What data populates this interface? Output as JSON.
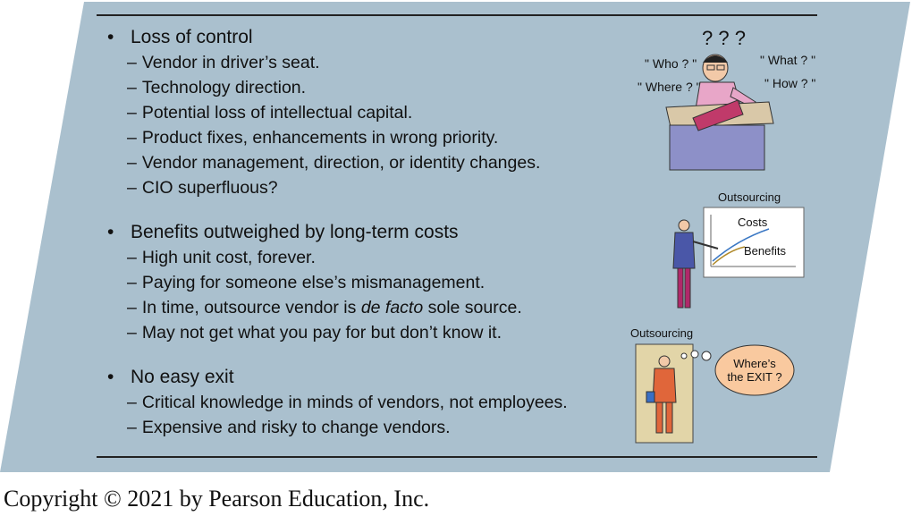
{
  "sections": [
    {
      "heading": "Loss of control",
      "items": [
        [
          "Vendor in driver’s seat."
        ],
        [
          "Technology direction."
        ],
        [
          "Potential loss of intellectual capital."
        ],
        [
          "Product fixes, enhancements in wrong priority."
        ],
        [
          "Vendor management, direction, or identity changes."
        ],
        [
          "CIO superfluous?"
        ]
      ]
    },
    {
      "heading": "Benefits outweighed by long-term costs",
      "items": [
        [
          "High unit cost, forever."
        ],
        [
          "Paying for someone else’s mismanagement."
        ],
        [
          "In time, outsource vendor is ",
          "de facto",
          " sole source."
        ],
        [
          "May not get what you pay for but don’t know it."
        ]
      ]
    },
    {
      "heading": "No easy exit",
      "items": [
        [
          "Critical knowledge in minds of vendors, not employees."
        ],
        [
          "Expensive and risky to change vendors."
        ]
      ]
    }
  ],
  "illustrations": {
    "questions": {
      "marks": "? ? ?",
      "who": "\" Who ? \"",
      "where": "\" Where ? \"",
      "what": "\" What ? \"",
      "how": "\" How ? \""
    },
    "chart": {
      "title": "Outsourcing",
      "costs_label": "Costs",
      "benefits_label": "Benefits"
    },
    "exit": {
      "title": "Outsourcing",
      "thought_line1": "Where’s",
      "thought_line2": "the EXIT ?"
    }
  },
  "colors": {
    "slide_bg": "#aac0ce",
    "rule": "#222222"
  },
  "copyright": "Copyright © 2021 by Pearson Education, Inc."
}
